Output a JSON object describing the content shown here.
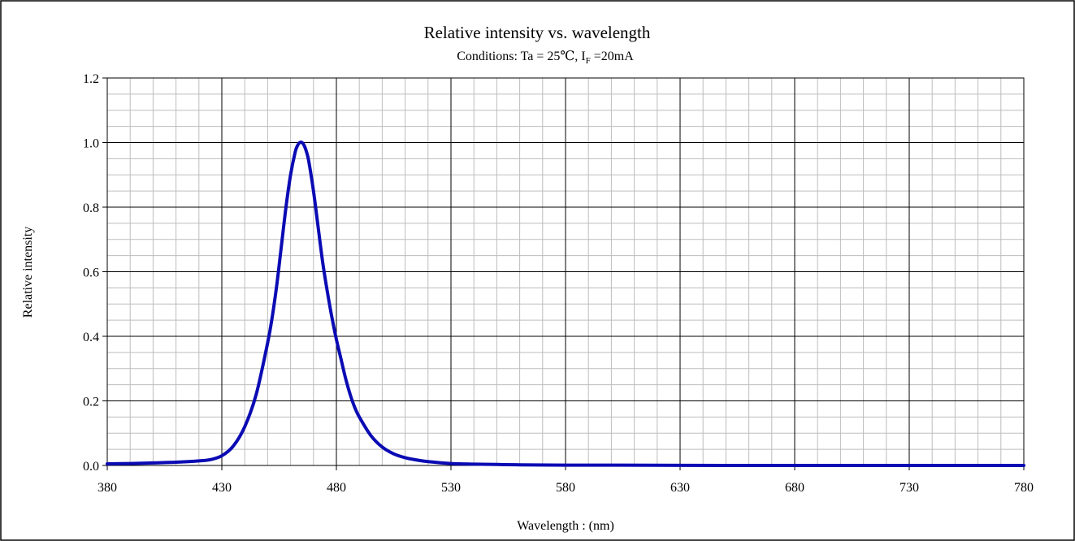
{
  "chart_data": {
    "type": "line",
    "title": "Relative intensity vs. wavelength",
    "subtitle": {
      "prefix": "Conditions: Ta = 25℃, I",
      "subscript": "F",
      "suffix": " =20mA"
    },
    "xlabel": "Wavelength : (nm)",
    "ylabel": "Relative intensity",
    "xlim": [
      380,
      780
    ],
    "ylim": [
      0,
      1.2
    ],
    "x_ticks": [
      380,
      430,
      480,
      530,
      580,
      630,
      680,
      730,
      780
    ],
    "x_tick_labels": [
      "380",
      "430",
      "480",
      "530",
      "580",
      "630",
      "680",
      "730",
      "780"
    ],
    "y_ticks": [
      0,
      0.2,
      0.4,
      0.6,
      0.8,
      1.0,
      1.2
    ],
    "y_tick_labels": [
      "0.0",
      "0.2",
      "0.4",
      "0.6",
      "0.8",
      "1.0",
      "1.2"
    ],
    "x_minor_step": 10,
    "y_minor_step": 0.05,
    "grid": true,
    "colors": {
      "line": "#0b0bb4",
      "major_grid": "#000000",
      "minor_grid": "#bdbdbd"
    },
    "series": [
      {
        "x": [
          380,
          390,
          400,
          410,
          420,
          425,
          430,
          435,
          440,
          445,
          450,
          452,
          454,
          456,
          458,
          460,
          462,
          463,
          464,
          465,
          466,
          467,
          468,
          470,
          472,
          474,
          476,
          478,
          480,
          482,
          484,
          486,
          488,
          490,
          495,
          500,
          505,
          510,
          515,
          520,
          530,
          540,
          550,
          560,
          580,
          600,
          650,
          700,
          750,
          780
        ],
        "y": [
          0.005,
          0.006,
          0.008,
          0.01,
          0.014,
          0.018,
          0.03,
          0.06,
          0.12,
          0.22,
          0.38,
          0.46,
          0.56,
          0.68,
          0.8,
          0.9,
          0.97,
          0.99,
          1.0,
          1.0,
          0.99,
          0.97,
          0.94,
          0.85,
          0.74,
          0.63,
          0.54,
          0.46,
          0.39,
          0.33,
          0.27,
          0.22,
          0.18,
          0.15,
          0.093,
          0.057,
          0.036,
          0.024,
          0.017,
          0.012,
          0.006,
          0.004,
          0.003,
          0.002,
          0.001,
          0.001,
          0.0,
          0.0,
          0.0,
          0.0
        ]
      }
    ]
  }
}
